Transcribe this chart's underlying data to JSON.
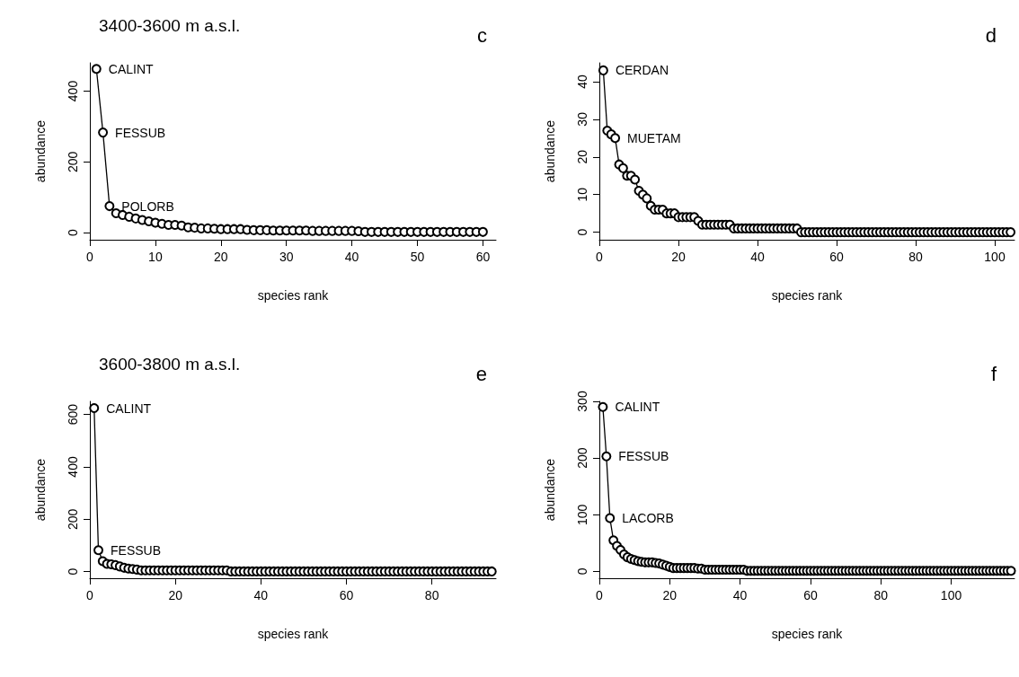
{
  "chart_data": [
    {
      "type": "line",
      "title": "3400-3600 m a.s.l.",
      "xlabel": "species rank",
      "ylabel": "abundance",
      "marker": "circle",
      "line_style": "solid",
      "xlim": [
        0,
        62
      ],
      "xticks": [
        0,
        10,
        20,
        30,
        40,
        50,
        60
      ],
      "ylim": [
        -20,
        480
      ],
      "yticks": [
        0,
        200,
        400
      ],
      "annotations": [
        "c",
        {
          "text": "CALINT",
          "x": 1,
          "y": 463
        },
        {
          "text": "FESSUB",
          "x": 2,
          "y": 283
        },
        {
          "text": "POLORB",
          "x": 3,
          "y": 75
        }
      ],
      "series": [
        {
          "color": "#000000",
          "x": [
            1,
            2,
            3,
            4,
            5,
            6,
            7,
            8,
            9,
            10,
            11,
            12,
            13,
            14,
            15,
            16,
            17,
            18,
            19,
            20,
            21,
            22,
            23,
            24,
            25,
            26,
            27,
            28,
            29,
            30,
            31,
            32,
            33,
            34,
            35,
            36,
            37,
            38,
            39,
            40,
            41,
            42,
            43,
            44,
            45,
            46,
            47,
            48,
            49,
            50,
            51,
            52,
            53,
            54,
            55,
            56,
            57,
            58,
            59,
            60
          ],
          "values": [
            463,
            283,
            75,
            55,
            50,
            45,
            40,
            36,
            32,
            28,
            25,
            22,
            22,
            20,
            15,
            14,
            12,
            12,
            11,
            10,
            10,
            10,
            10,
            8,
            7,
            7,
            7,
            6,
            6,
            6,
            6,
            6,
            6,
            5,
            5,
            5,
            5,
            5,
            5,
            5,
            4,
            2,
            2,
            2,
            2,
            2,
            2,
            2,
            2,
            2,
            2,
            2,
            2,
            2,
            2,
            2,
            2,
            2,
            2,
            2
          ]
        }
      ]
    },
    {
      "type": "line",
      "xlabel": "species rank",
      "ylabel": "abundance",
      "marker": "circle",
      "line_style": "solid",
      "xlim": [
        0,
        105
      ],
      "xticks": [
        0,
        20,
        40,
        60,
        80,
        100
      ],
      "ylim": [
        -2,
        45
      ],
      "yticks": [
        0,
        10,
        20,
        30,
        40
      ],
      "annotations": [
        "d",
        {
          "text": "CERDAN",
          "x": 1,
          "y": 43
        },
        {
          "text": "MUETAM",
          "x": 4,
          "y": 25
        }
      ],
      "series": [
        {
          "color": "#000000",
          "x": [
            1,
            2,
            3,
            4,
            5,
            6,
            7,
            8,
            9,
            10,
            11,
            12,
            13,
            14,
            15,
            16,
            17,
            18,
            19,
            20,
            21,
            22,
            23,
            24,
            25,
            26,
            27,
            28,
            29,
            30,
            31,
            32,
            33,
            34,
            35,
            36,
            37,
            38,
            39,
            40,
            41,
            42,
            43,
            44,
            45,
            46,
            47,
            48,
            49,
            50,
            51,
            52,
            53,
            54,
            55,
            56,
            57,
            58,
            59,
            60,
            61,
            62,
            63,
            64,
            65,
            66,
            67,
            68,
            69,
            70,
            71,
            72,
            73,
            74,
            75,
            76,
            77,
            78,
            79,
            80,
            81,
            82,
            83,
            84,
            85,
            86,
            87,
            88,
            89,
            90,
            91,
            92,
            93,
            94,
            95,
            96,
            97,
            98,
            99,
            100,
            101,
            102,
            103,
            104
          ],
          "values": [
            43,
            27,
            26,
            25,
            18,
            17,
            15,
            15,
            14,
            11,
            10,
            9,
            7,
            6,
            6,
            6,
            5,
            5,
            5,
            4,
            4,
            4,
            4,
            4,
            3,
            2,
            2,
            2,
            2,
            2,
            2,
            2,
            2,
            1,
            1,
            1,
            1,
            1,
            1,
            1,
            1,
            1,
            1,
            1,
            1,
            1,
            1,
            1,
            1,
            1,
            0,
            0,
            0,
            0,
            0,
            0,
            0,
            0,
            0,
            0,
            0,
            0,
            0,
            0,
            0,
            0,
            0,
            0,
            0,
            0,
            0,
            0,
            0,
            0,
            0,
            0,
            0,
            0,
            0,
            0,
            0,
            0,
            0,
            0,
            0,
            0,
            0,
            0,
            0,
            0,
            0,
            0,
            0,
            0,
            0,
            0,
            0,
            0,
            0,
            0,
            0,
            0,
            0,
            0
          ]
        }
      ]
    },
    {
      "type": "line",
      "title": "3600-3800 m a.s.l.",
      "xlabel": "species rank",
      "ylabel": "abundance",
      "marker": "circle",
      "line_style": "solid",
      "xlim": [
        0,
        95
      ],
      "xticks": [
        0,
        20,
        40,
        60,
        80
      ],
      "ylim": [
        -25,
        650
      ],
      "yticks": [
        0,
        200,
        400,
        600
      ],
      "annotations": [
        "e",
        {
          "text": "CALINT",
          "x": 1,
          "y": 624
        },
        {
          "text": "FESSUB",
          "x": 2,
          "y": 82
        }
      ],
      "series": [
        {
          "color": "#000000",
          "x": [
            1,
            2,
            3,
            4,
            5,
            6,
            7,
            8,
            9,
            10,
            11,
            12,
            13,
            14,
            15,
            16,
            17,
            18,
            19,
            20,
            21,
            22,
            23,
            24,
            25,
            26,
            27,
            28,
            29,
            30,
            31,
            32,
            33,
            34,
            35,
            36,
            37,
            38,
            39,
            40,
            41,
            42,
            43,
            44,
            45,
            46,
            47,
            48,
            49,
            50,
            51,
            52,
            53,
            54,
            55,
            56,
            57,
            58,
            59,
            60,
            61,
            62,
            63,
            64,
            65,
            66,
            67,
            68,
            69,
            70,
            71,
            72,
            73,
            74,
            75,
            76,
            77,
            78,
            79,
            80,
            81,
            82,
            83,
            84,
            85,
            86,
            87,
            88,
            89,
            90,
            91,
            92,
            93,
            94
          ],
          "values": [
            624,
            82,
            40,
            30,
            28,
            25,
            20,
            15,
            12,
            10,
            8,
            5,
            5,
            5,
            5,
            5,
            5,
            5,
            5,
            5,
            5,
            5,
            5,
            5,
            5,
            5,
            5,
            5,
            5,
            5,
            5,
            5,
            1,
            1,
            1,
            1,
            1,
            1,
            1,
            1,
            1,
            1,
            1,
            1,
            1,
            1,
            1,
            1,
            1,
            1,
            1,
            1,
            1,
            1,
            1,
            1,
            1,
            1,
            1,
            1,
            1,
            1,
            1,
            1,
            1,
            1,
            1,
            1,
            1,
            1,
            1,
            1,
            1,
            1,
            1,
            1,
            1,
            1,
            1,
            1,
            1,
            1,
            1,
            1,
            1,
            1,
            1,
            1,
            1,
            1,
            1,
            1,
            1,
            1
          ]
        }
      ]
    },
    {
      "type": "line",
      "xlabel": "species rank",
      "ylabel": "abundance",
      "marker": "circle",
      "line_style": "solid",
      "xlim": [
        0,
        118
      ],
      "xticks": [
        0,
        20,
        40,
        60,
        80,
        100
      ],
      "ylim": [
        -12,
        300
      ],
      "yticks": [
        0,
        100,
        200,
        300
      ],
      "annotations": [
        "f",
        {
          "text": "CALINT",
          "x": 1,
          "y": 290
        },
        {
          "text": "FESSUB",
          "x": 2,
          "y": 203
        },
        {
          "text": "LACORB",
          "x": 3,
          "y": 94
        }
      ],
      "series": [
        {
          "color": "#000000",
          "x": [
            1,
            2,
            3,
            4,
            5,
            6,
            7,
            8,
            9,
            10,
            11,
            12,
            13,
            14,
            15,
            16,
            17,
            18,
            19,
            20,
            21,
            22,
            23,
            24,
            25,
            26,
            27,
            28,
            29,
            30,
            31,
            32,
            33,
            34,
            35,
            36,
            37,
            38,
            39,
            40,
            41,
            42,
            43,
            44,
            45,
            46,
            47,
            48,
            49,
            50,
            51,
            52,
            53,
            54,
            55,
            56,
            57,
            58,
            59,
            60,
            61,
            62,
            63,
            64,
            65,
            66,
            67,
            68,
            69,
            70,
            71,
            72,
            73,
            74,
            75,
            76,
            77,
            78,
            79,
            80,
            81,
            82,
            83,
            84,
            85,
            86,
            87,
            88,
            89,
            90,
            91,
            92,
            93,
            94,
            95,
            96,
            97,
            98,
            99,
            100,
            101,
            102,
            103,
            104,
            105,
            106,
            107,
            108,
            109,
            110,
            111,
            112,
            113,
            114,
            115,
            116,
            117
          ],
          "values": [
            290,
            203,
            94,
            55,
            45,
            38,
            30,
            25,
            22,
            20,
            18,
            17,
            16,
            16,
            16,
            15,
            14,
            12,
            10,
            8,
            6,
            6,
            6,
            6,
            6,
            6,
            6,
            5,
            5,
            3,
            3,
            3,
            3,
            3,
            3,
            3,
            3,
            3,
            3,
            3,
            3,
            1,
            1,
            1,
            1,
            1,
            1,
            1,
            1,
            1,
            1,
            1,
            1,
            1,
            1,
            1,
            1,
            1,
            1,
            1,
            1,
            1,
            1,
            1,
            1,
            1,
            1,
            1,
            1,
            1,
            1,
            1,
            1,
            1,
            1,
            1,
            1,
            1,
            1,
            1,
            1,
            1,
            1,
            1,
            1,
            1,
            1,
            1,
            1,
            1,
            1,
            1,
            1,
            1,
            1,
            1,
            1,
            1,
            1,
            1,
            1,
            1,
            1,
            1,
            1,
            1,
            1,
            1,
            1,
            1,
            1,
            1,
            1,
            1,
            1,
            1,
            1
          ]
        }
      ]
    }
  ]
}
